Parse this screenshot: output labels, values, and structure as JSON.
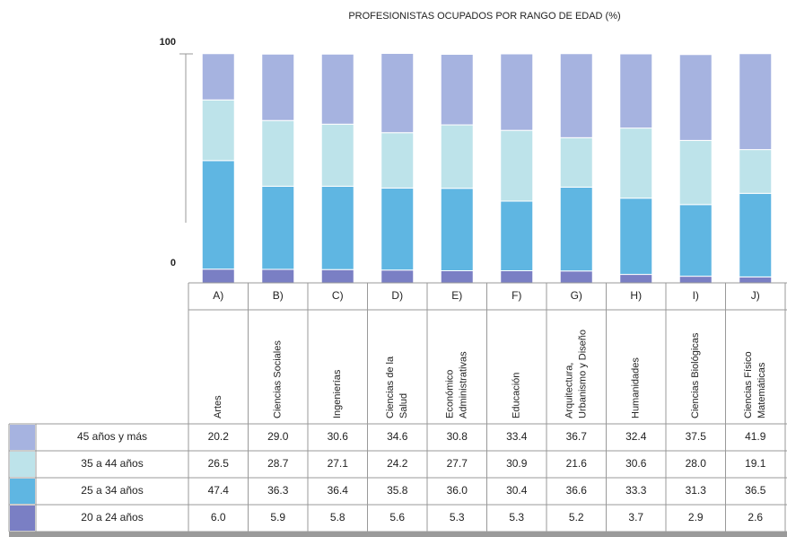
{
  "chart_data": {
    "type": "stacked_bar",
    "title": "PROFESIONISTAS OCUPADOS POR RANGO DE EDAD (%)",
    "categories": [
      "A)",
      "B)",
      "C)",
      "D)",
      "E)",
      "F)",
      "G)",
      "H)",
      "I)",
      "J)"
    ],
    "names": [
      [
        "Artes"
      ],
      [
        "Ciencias Sociales"
      ],
      [
        "Ingenierías"
      ],
      [
        "Ciencias de la",
        "Salud"
      ],
      [
        "Económico",
        "Administrativas"
      ],
      [
        "Educación"
      ],
      [
        "Arquitectura,",
        "Urbanismo y Diseño"
      ],
      [
        "Humanidades"
      ],
      [
        "Ciencias Biológicas"
      ],
      [
        "Ciencias Físico",
        "Matemáticas"
      ]
    ],
    "ylim": [
      0,
      100
    ],
    "yticks": [
      0,
      100
    ],
    "series": [
      {
        "name": "45 años y más",
        "color": "#a6b3e0",
        "values": [
          20.2,
          29.0,
          30.6,
          34.6,
          30.8,
          33.4,
          36.7,
          32.4,
          37.5,
          41.9
        ],
        "value_labels": [
          "20.2",
          "29.0",
          "30.6",
          "34.6",
          "30.8",
          "33.4",
          "36.7",
          "32.4",
          "37.5",
          "41.9"
        ]
      },
      {
        "name": "35 a 44 años",
        "color": "#bde3ea",
        "values": [
          26.5,
          28.7,
          27.1,
          24.2,
          27.7,
          30.9,
          21.6,
          30.6,
          28.0,
          19.1
        ],
        "value_labels": [
          "26.5",
          "28.7",
          "27.1",
          "24.2",
          "27.7",
          "30.9",
          "21.6",
          "30.6",
          "28.0",
          "19.1"
        ]
      },
      {
        "name": "25 a 34 años",
        "color": "#5fb6e2",
        "values": [
          47.4,
          36.3,
          36.4,
          35.8,
          36.0,
          30.4,
          36.6,
          33.3,
          31.3,
          36.5
        ],
        "value_labels": [
          "47.4",
          "36.3",
          "36.4",
          "35.8",
          "36.0",
          "30.4",
          "36.6",
          "33.3",
          "31.3",
          "36.5"
        ]
      },
      {
        "name": "20 a 24 años",
        "color": "#7a7fc4",
        "values": [
          6.0,
          5.9,
          5.8,
          5.6,
          5.3,
          5.3,
          5.2,
          3.7,
          2.9,
          2.6
        ],
        "value_labels": [
          "6.0",
          "5.9",
          "5.8",
          "5.6",
          "5.3",
          "5.3",
          "5.2",
          "3.7",
          "2.9",
          "2.6"
        ]
      }
    ]
  }
}
